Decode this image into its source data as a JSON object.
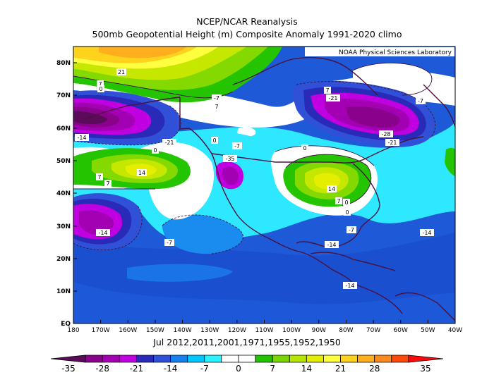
{
  "title_line1": "NCEP/NCAR Reanalysis",
  "title_line2": "500mb Geopotential Height (m) Composite Anomaly 1991-2020 climo",
  "credit": "NOAA Physical Sciences Laboratory",
  "caption": "Jul 2012,2011,2001,1971,1955,1952,1950",
  "lat_labels": [
    "80N",
    "70N",
    "60N",
    "50N",
    "40N",
    "30N",
    "20N",
    "10N",
    "EQ"
  ],
  "lon_labels": [
    "180",
    "170W",
    "160W",
    "150W",
    "140W",
    "130W",
    "120W",
    "110W",
    "100W",
    "90W",
    "80W",
    "70W",
    "60W",
    "50W",
    "40W"
  ],
  "contour_labels": [
    "21",
    "7",
    "0",
    "-7",
    "7",
    "0",
    "-14",
    "-21",
    "0",
    "-7",
    "-35",
    "0",
    "7",
    "14",
    "7",
    "0",
    "-7",
    "-14",
    "0",
    "7",
    "14",
    "7",
    "0",
    "-28",
    "-21",
    "-21",
    "-7",
    "-14",
    "-7",
    "-14",
    "-14"
  ],
  "colorbar_labels": [
    "-35",
    "-28",
    "-21",
    "-14",
    "-7",
    "0",
    "7",
    "14",
    "21",
    "28",
    "35"
  ],
  "colorbar_colors": [
    "#5c0a5a",
    "#8a028c",
    "#a400b3",
    "#c000e0",
    "#2a2ab8",
    "#3050d8",
    "#1680ec",
    "#00c8ff",
    "#2cf2ff",
    "#ffffff",
    "#ffffff",
    "#22c400",
    "#7ad800",
    "#b8e600",
    "#e4ee00",
    "#ffff40",
    "#ffd21e",
    "#ffae1e",
    "#ff8a1e",
    "#ff4a0a",
    "#ff0a0a"
  ],
  "colors": {
    "plot_background": "#1e5ad8",
    "coastline": "#4a1040",
    "contour": "#3a1040"
  }
}
